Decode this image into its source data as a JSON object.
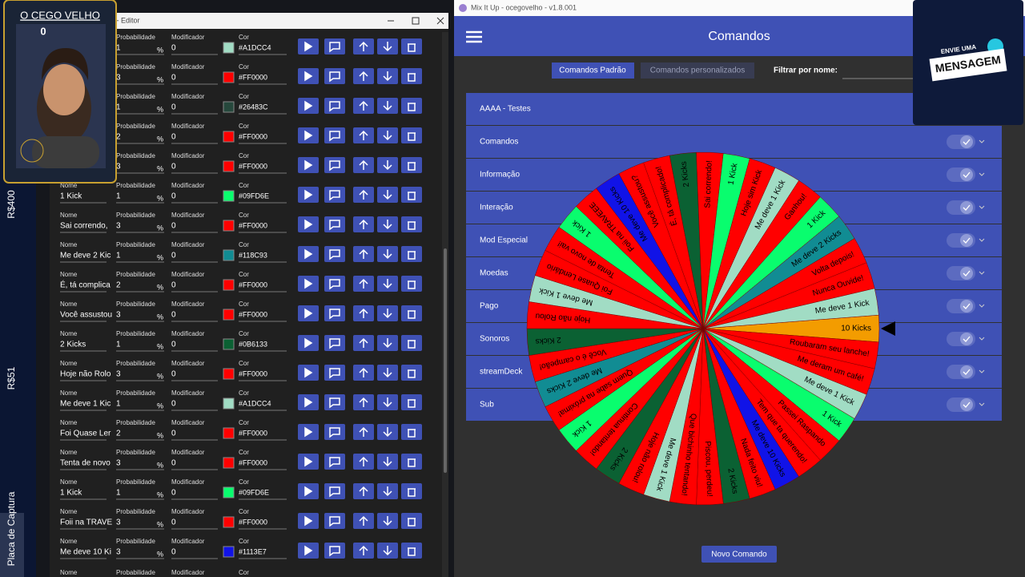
{
  "sidebar": {
    "top": "R$400",
    "middle": "R$51",
    "bottom": "Placa de Captura"
  },
  "overlay": {
    "channel": "O CEGO VELHO",
    "count": "0",
    "message_top": "ENVIE UMA",
    "message_main": "MENSAGEM"
  },
  "editor": {
    "title": "o - Editor",
    "labels": {
      "name": "Nome",
      "probability": "Probabilidade",
      "modifier": "Modificador",
      "color": "Cor",
      "percent": "%"
    },
    "rows": [
      {
        "probability": 1,
        "modifier": 0,
        "color": "#A1DCC4"
      },
      {
        "probability": 3,
        "modifier": 0,
        "color": "#FF0000"
      },
      {
        "probability": 1,
        "modifier": 0,
        "color": "#26483C"
      },
      {
        "probability": 2,
        "modifier": 0,
        "color": "#FF0000"
      },
      {
        "probability": 3,
        "modifier": 0,
        "color": "#FF0000"
      },
      {
        "name": "1 Kick",
        "probability": 1,
        "modifier": 0,
        "color": "#09FD6E"
      },
      {
        "name": "Sai correndo,",
        "probability": 3,
        "modifier": 0,
        "color": "#FF0000"
      },
      {
        "name": "Me deve 2 Kic",
        "probability": 1,
        "modifier": 0,
        "color": "#118C93"
      },
      {
        "name": "É, tá complica",
        "probability": 2,
        "modifier": 0,
        "color": "#FF0000"
      },
      {
        "name": "Você assustou",
        "probability": 3,
        "modifier": 0,
        "color": "#FF0000"
      },
      {
        "name": "2 Kicks",
        "probability": 1,
        "modifier": 0,
        "color": "#0B6133"
      },
      {
        "name": "Hoje não Rolo",
        "probability": 3,
        "modifier": 0,
        "color": "#FF0000"
      },
      {
        "name": "Me deve 1 Kic",
        "probability": 1,
        "modifier": 0,
        "color": "#A1DCC4"
      },
      {
        "name": "Foi Quase Ler",
        "probability": 2,
        "modifier": 0,
        "color": "#FF0000"
      },
      {
        "name": "Tenta de novo",
        "probability": 3,
        "modifier": 0,
        "color": "#FF0000"
      },
      {
        "name": "1 Kick",
        "probability": 1,
        "modifier": 0,
        "color": "#09FD6E"
      },
      {
        "name": "Foii na TRAVE",
        "probability": 3,
        "modifier": 0,
        "color": "#FF0000"
      },
      {
        "name": "Me deve 10 Ki",
        "probability": 3,
        "modifier": 0,
        "color": "#1113E7"
      }
    ]
  },
  "app": {
    "window_title": "Mix It Up - ocegovelho - v1.8.001",
    "header": "Comandos",
    "tab_active": "Comandos Padrão",
    "tab_inactive": "Comandos personalizados",
    "filter_label": "Filtrar por nome:",
    "groups": [
      "AAAA - Testes",
      "Comandos",
      "Informação",
      "Interação",
      "Mod Especial",
      "Moedas",
      "Pago",
      "Sonoros",
      "streamDeck",
      "Sub"
    ],
    "new_button": "Novo Comando"
  },
  "wheel": {
    "segments": [
      {
        "label": "10 Kicks",
        "color": "#F39C00"
      },
      {
        "label": "Roubaram seu lanche!",
        "color": "#FF0000"
      },
      {
        "label": "Me deram um café!",
        "color": "#FF0000"
      },
      {
        "label": "Me deve 1 Kick",
        "color": "#A1DCC4"
      },
      {
        "label": "1 Kick",
        "color": "#09FD6E"
      },
      {
        "label": "Passei Raspando",
        "color": "#FF0000"
      },
      {
        "label": "Tem que ta querendo!",
        "color": "#FF0000"
      },
      {
        "label": "Me deve 10 Kicks",
        "color": "#1113E7"
      },
      {
        "label": "Nada feito viu!",
        "color": "#FF0000"
      },
      {
        "label": "2 Kicks",
        "color": "#0B6133"
      },
      {
        "label": "Piscou, perdeu!",
        "color": "#FF0000"
      },
      {
        "label": "Que bichinho tentando!",
        "color": "#FF0000"
      },
      {
        "label": "Me deve 1 Kick",
        "color": "#A1DCC4"
      },
      {
        "label": "Hoje não rolou!",
        "color": "#FF0000"
      },
      {
        "label": "2 Kicks",
        "color": "#0B6133"
      },
      {
        "label": "Continua tentando!",
        "color": "#FF0000"
      },
      {
        "label": "1 Kick",
        "color": "#09FD6E"
      },
      {
        "label": "Quem sabe na próxima!",
        "color": "#FF0000"
      },
      {
        "label": "Me deve 2 Kicks",
        "color": "#118C93"
      },
      {
        "label": "Você é o campeão!",
        "color": "#FF0000"
      },
      {
        "label": "2 Kicks",
        "color": "#0B6133"
      },
      {
        "label": "Hoje não Rolou",
        "color": "#FF0000"
      },
      {
        "label": "Me deve 1 Kick",
        "color": "#A1DCC4"
      },
      {
        "label": "Foi Quase Lendário",
        "color": "#FF0000"
      },
      {
        "label": "Tenta de novo vai!",
        "color": "#FF0000"
      },
      {
        "label": "1 Kick",
        "color": "#09FD6E"
      },
      {
        "label": "Foii na TRAVEEE",
        "color": "#FF0000"
      },
      {
        "label": "Me deve 10 Kicks",
        "color": "#1113E7"
      },
      {
        "label": "Você assustou?",
        "color": "#FF0000"
      },
      {
        "label": "É, tá complicado!",
        "color": "#FF0000"
      },
      {
        "label": "2 Kicks",
        "color": "#0B6133"
      },
      {
        "label": "Sai correndo!",
        "color": "#FF0000"
      },
      {
        "label": "1 Kick",
        "color": "#09FD6E"
      },
      {
        "label": "Hoje sim Kick",
        "color": "#FF0000"
      },
      {
        "label": "Me deve 1 Kick",
        "color": "#A1DCC4"
      },
      {
        "label": "Ganhou!",
        "color": "#FF0000"
      },
      {
        "label": "1 Kick",
        "color": "#09FD6E"
      },
      {
        "label": "Me deve 2 Kicks",
        "color": "#118C93"
      },
      {
        "label": "Volta depois!",
        "color": "#FF0000"
      },
      {
        "label": "Nunca Ouvide!",
        "color": "#FF0000"
      },
      {
        "label": "Me deve 1 Kick",
        "color": "#A1DCC4"
      }
    ]
  }
}
